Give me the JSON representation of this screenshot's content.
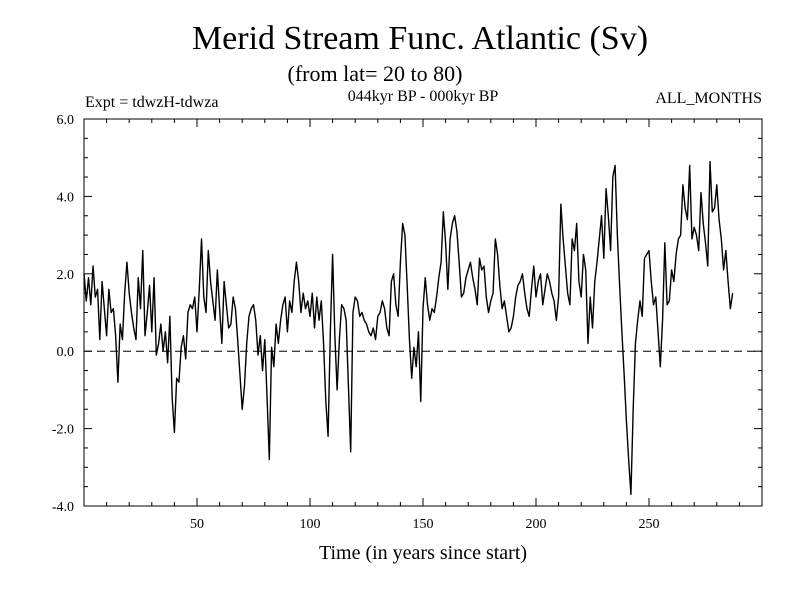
{
  "chart_data": {
    "type": "line",
    "title": "Merid Stream Func. Atlantic (Sv)",
    "subtitle": "(from lat= 20 to 80)",
    "experiment": "Expt = tdwzH-tdwza",
    "period": "044kyr BP - 000kyr BP",
    "months": "ALL_MONTHS",
    "xlabel": "Time (in years since start)",
    "ylabel": "",
    "xlim": [
      0,
      300
    ],
    "ylim": [
      -4,
      6
    ],
    "x_ticks": [
      50,
      100,
      150,
      200,
      250
    ],
    "x_tick_labels": [
      "50",
      "100",
      "150",
      "200",
      "250"
    ],
    "y_ticks": [
      -4,
      -2,
      0,
      2,
      4,
      6
    ],
    "y_tick_labels": [
      "-4.0",
      "-2.0",
      "0.0",
      "2.0",
      "4.0",
      "6.0"
    ],
    "reference_line": 0,
    "grid": false,
    "series": [
      {
        "x_start": 0,
        "x_step": 1,
        "values": [
          2.0,
          1.3,
          1.9,
          1.2,
          2.2,
          1.4,
          1.6,
          0.3,
          1.8,
          1.1,
          0.4,
          1.6,
          1.0,
          1.1,
          0.4,
          -0.8,
          0.7,
          0.3,
          1.5,
          2.3,
          1.5,
          1.0,
          0.6,
          0.3,
          1.9,
          1.1,
          2.6,
          0.4,
          1.0,
          1.7,
          0.5,
          1.9,
          -0.1,
          0.2,
          0.7,
          0.0,
          0.5,
          -0.3,
          0.9,
          -1.2,
          -2.1,
          -0.7,
          -0.8,
          0.1,
          0.4,
          -0.2,
          1.0,
          1.2,
          1.1,
          1.4,
          0.5,
          1.6,
          2.9,
          1.4,
          1.0,
          2.6,
          1.8,
          1.3,
          0.8,
          2.1,
          1.1,
          0.2,
          1.8,
          1.2,
          0.6,
          0.7,
          1.4,
          1.1,
          0.3,
          -0.6,
          -1.5,
          -0.9,
          0.2,
          0.9,
          1.1,
          1.2,
          0.8,
          -0.1,
          0.4,
          -0.5,
          0.3,
          -1.2,
          -2.8,
          0.1,
          -0.4,
          0.7,
          0.2,
          0.8,
          1.2,
          1.4,
          0.5,
          1.3,
          1.0,
          1.8,
          2.3,
          1.8,
          1.0,
          1.5,
          1.1,
          1.3,
          0.9,
          1.5,
          0.6,
          1.4,
          0.8,
          1.3,
          0.2,
          -1.3,
          -2.2,
          0.5,
          2.5,
          0.4,
          -1.0,
          0.3,
          1.2,
          1.1,
          0.8,
          -0.9,
          -2.6,
          1.0,
          1.4,
          1.3,
          0.9,
          1.0,
          0.8,
          0.7,
          0.5,
          0.4,
          0.6,
          0.3,
          0.9,
          1.0,
          1.3,
          1.1,
          0.6,
          0.4,
          1.8,
          2.0,
          1.2,
          0.9,
          2.3,
          3.3,
          3.0,
          1.7,
          0.3,
          -0.7,
          0.1,
          -0.4,
          0.5,
          -1.3,
          1.1,
          1.9,
          1.2,
          0.8,
          1.1,
          1.0,
          1.4,
          1.9,
          2.3,
          3.6,
          2.8,
          1.6,
          2.9,
          3.3,
          3.5,
          3.1,
          2.3,
          1.4,
          1.5,
          1.9,
          2.1,
          2.3,
          1.9,
          1.6,
          1.2,
          2.4,
          2.1,
          2.2,
          1.4,
          1.0,
          1.3,
          1.5,
          2.9,
          2.5,
          1.7,
          1.1,
          1.3,
          0.9,
          0.5,
          0.6,
          0.9,
          1.4,
          1.7,
          1.8,
          2.0,
          1.5,
          1.1,
          0.9,
          1.6,
          2.2,
          1.4,
          1.8,
          2.0,
          1.2,
          1.6,
          2.0,
          1.8,
          1.5,
          1.3,
          0.8,
          1.4,
          3.8,
          2.9,
          2.2,
          1.5,
          1.2,
          2.9,
          2.6,
          3.3,
          1.8,
          1.4,
          2.5,
          2.1,
          0.2,
          1.4,
          0.6,
          1.8,
          2.3,
          2.9,
          3.5,
          2.4,
          4.2,
          3.5,
          2.6,
          4.5,
          4.8,
          3.0,
          1.7,
          0.5,
          -0.6,
          -1.8,
          -2.8,
          -3.7,
          -1.5,
          0.2,
          0.8,
          1.3,
          0.9,
          2.4,
          2.5,
          2.6,
          1.8,
          1.2,
          1.4,
          0.5,
          -0.4,
          0.8,
          2.8,
          1.2,
          1.3,
          2.1,
          1.8,
          2.5,
          2.9,
          3.0,
          4.3,
          3.7,
          3.4,
          4.8,
          2.9,
          3.2,
          3.0,
          2.6,
          4.1,
          3.3,
          2.8,
          2.2,
          4.9,
          3.6,
          3.7,
          4.3,
          3.4,
          2.9,
          2.1,
          2.6,
          1.8,
          1.1,
          1.5
        ]
      }
    ]
  }
}
